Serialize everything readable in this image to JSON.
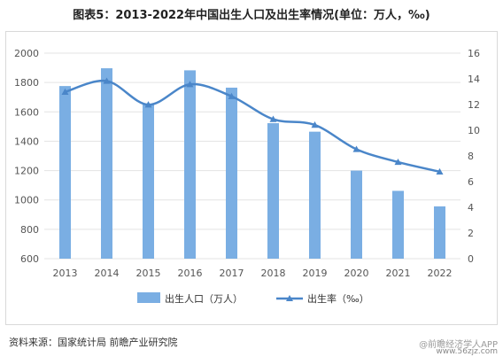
{
  "title": "图表5：2013-2022年中国出生人口及出生率情况(单位：万人，‰)",
  "source": "资料来源：国家统计局 前瞻产业研究院",
  "corner_watermark": "@前瞻经济学人APP",
  "site_mark": "www.56zjz.com",
  "colors": {
    "bar": "#7aaee3",
    "line": "#4a86c9",
    "grid": "#e3e3e3",
    "axis_text": "#555555"
  },
  "chart_data": {
    "type": "bar+line",
    "categories": [
      "2013",
      "2014",
      "2015",
      "2016",
      "2017",
      "2018",
      "2019",
      "2020",
      "2021",
      "2022"
    ],
    "series": [
      {
        "name": "出生人口（万人）",
        "type": "bar",
        "axis": "left",
        "values": [
          1776,
          1897,
          1655,
          1883,
          1765,
          1523,
          1465,
          1200,
          1062,
          956
        ]
      },
      {
        "name": "出生率（‰）",
        "type": "line",
        "axis": "right",
        "values": [
          12.98,
          13.83,
          11.99,
          13.57,
          12.64,
          10.86,
          10.41,
          8.52,
          7.52,
          6.77
        ]
      }
    ],
    "ylim_left": [
      600,
      2000
    ],
    "yticks_left": [
      600,
      800,
      1000,
      1200,
      1400,
      1600,
      1800,
      2000
    ],
    "ylim_right": [
      0,
      16
    ],
    "yticks_right": [
      0,
      2,
      4,
      6,
      8,
      10,
      12,
      14,
      16
    ],
    "grid": true,
    "legend_position": "bottom-center"
  }
}
